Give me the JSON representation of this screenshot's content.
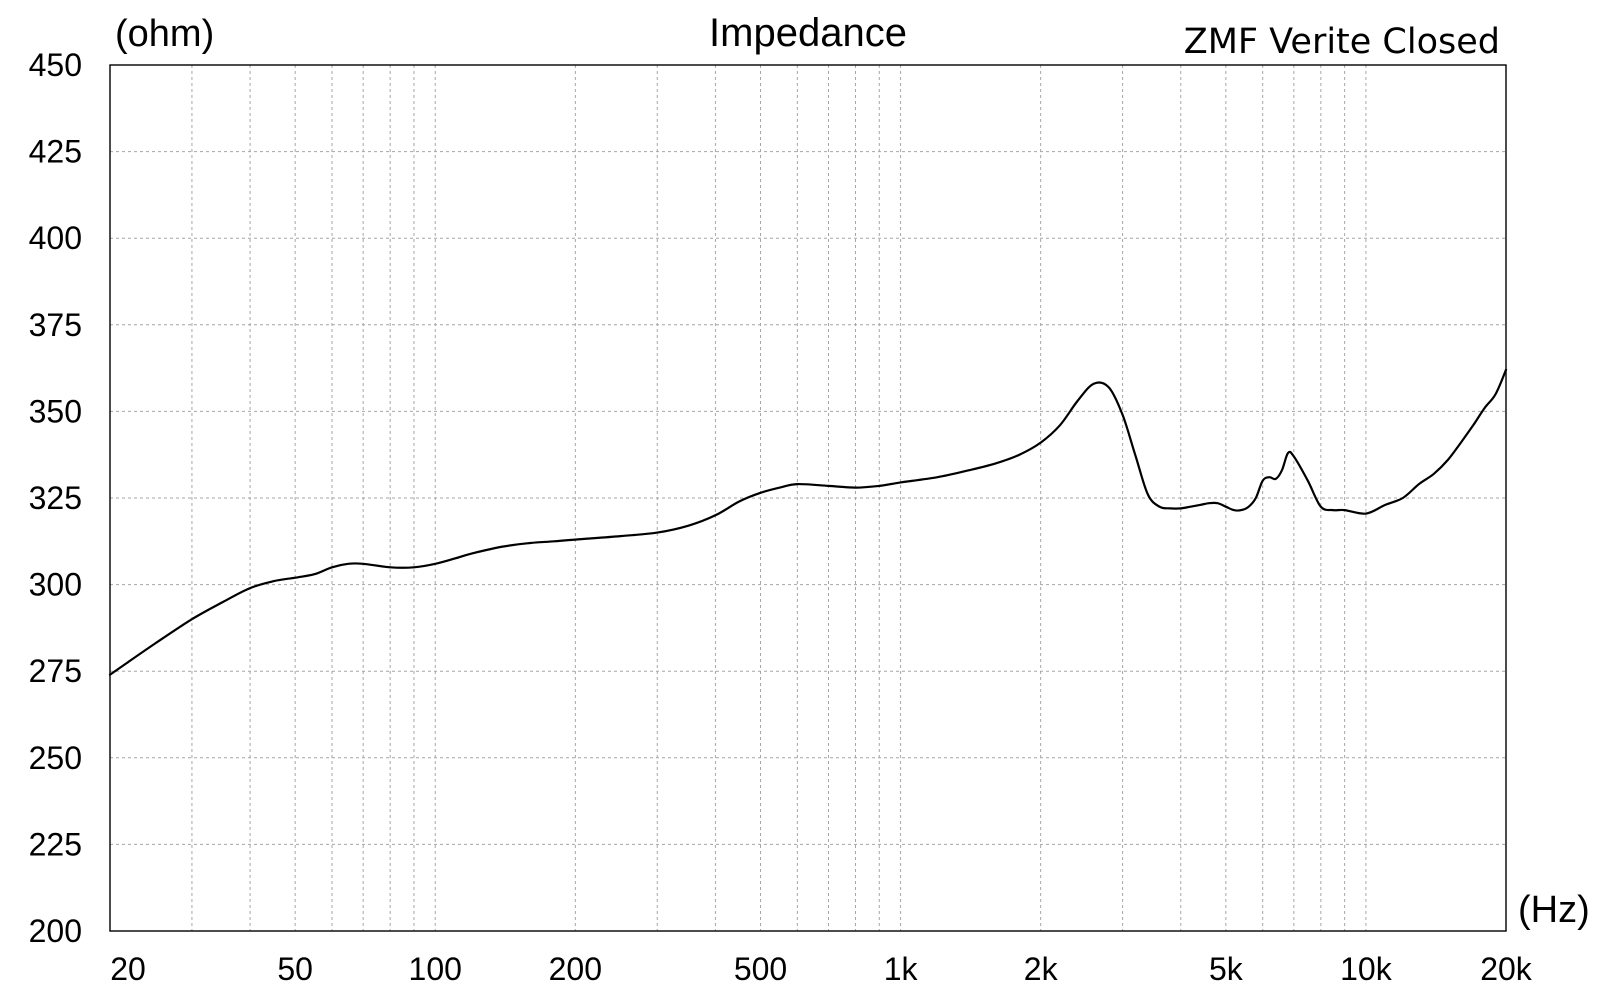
{
  "chart_data": {
    "type": "line",
    "title": "Impedance",
    "subtitle": "ZMF Verite Closed",
    "ylabel": "(ohm)",
    "xlabel": "(Hz)",
    "x_scale": "log",
    "xlim": [
      20,
      20000
    ],
    "ylim": [
      200,
      450
    ],
    "grid": true,
    "y_ticks": [
      200,
      225,
      250,
      275,
      300,
      325,
      350,
      375,
      400,
      425,
      450
    ],
    "x_ticks": [
      {
        "value": 20,
        "label": "20"
      },
      {
        "value": 50,
        "label": "50"
      },
      {
        "value": 100,
        "label": "100"
      },
      {
        "value": 200,
        "label": "200"
      },
      {
        "value": 500,
        "label": "500"
      },
      {
        "value": 1000,
        "label": "1k"
      },
      {
        "value": 2000,
        "label": "2k"
      },
      {
        "value": 5000,
        "label": "5k"
      },
      {
        "value": 10000,
        "label": "10k"
      },
      {
        "value": 20000,
        "label": "20k"
      }
    ],
    "series": [
      {
        "x": [
          20,
          25,
          30,
          35,
          40,
          45,
          50,
          55,
          60,
          65,
          70,
          80,
          90,
          100,
          110,
          120,
          140,
          160,
          180,
          200,
          250,
          300,
          350,
          400,
          450,
          500,
          550,
          600,
          700,
          800,
          900,
          1000,
          1200,
          1400,
          1600,
          1800,
          2000,
          2200,
          2400,
          2600,
          2800,
          3000,
          3200,
          3400,
          3600,
          3800,
          4000,
          4200,
          4400,
          4600,
          4800,
          5000,
          5200,
          5400,
          5600,
          5800,
          6000,
          6200,
          6400,
          6600,
          6800,
          7000,
          7500,
          8000,
          8500,
          9000,
          10000,
          11000,
          12000,
          13000,
          14000,
          15000,
          16000,
          17000,
          18000,
          19000,
          20000
        ],
        "values": [
          274,
          283,
          290,
          295,
          299,
          301,
          302,
          303,
          305,
          306,
          306,
          305,
          305,
          306,
          307.5,
          309,
          311,
          312,
          312.5,
          313,
          314,
          315,
          317,
          320,
          324,
          326.5,
          328,
          329,
          328.5,
          328,
          328.5,
          329.5,
          331,
          333,
          335,
          337.5,
          341,
          346,
          353,
          358,
          357,
          349,
          337,
          326,
          322.5,
          322,
          322,
          322.5,
          323,
          323.5,
          323.5,
          322.5,
          321.5,
          321.5,
          322.5,
          325,
          330,
          331,
          330.5,
          333,
          338,
          337,
          330,
          322.5,
          321.5,
          321.5,
          320.5,
          323,
          325,
          329,
          332,
          336,
          341,
          346,
          351,
          355,
          362
        ]
      }
    ]
  }
}
